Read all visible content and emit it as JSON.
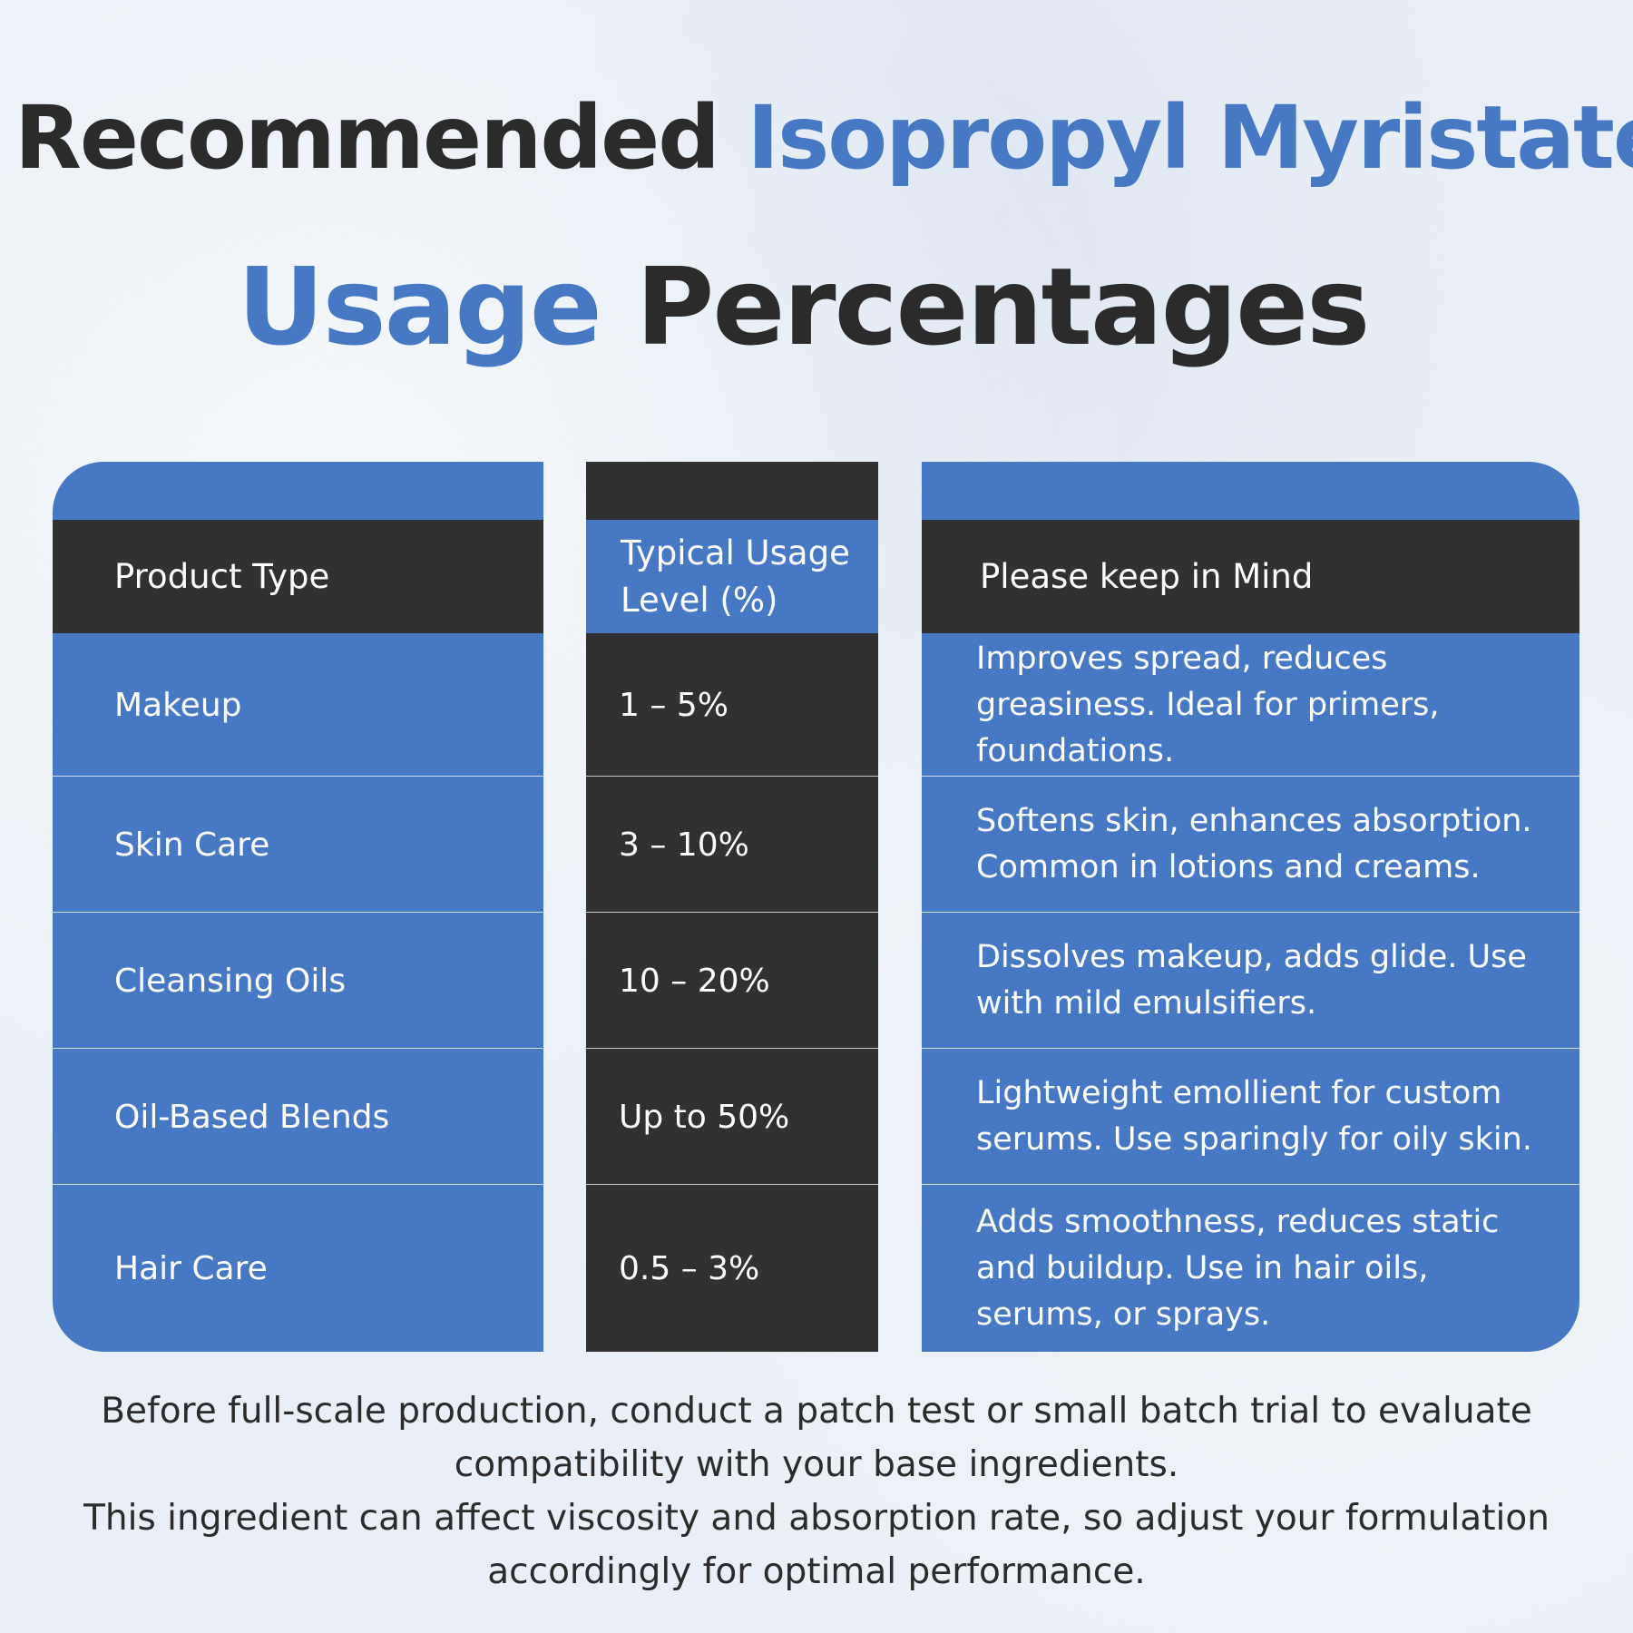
{
  "title": {
    "line1_part1": "Recommended",
    "line1_part2": "Isopropyl Myristate",
    "line2_part1": "Usage",
    "line2_part2": "Percentages"
  },
  "table": {
    "headers": {
      "product_type": "Product Type",
      "usage_level": "Typical Usage Level (%)",
      "notes": "Please keep in Mind"
    },
    "rows": [
      {
        "product": "Makeup",
        "usage": "1 – 5%",
        "note": "Improves spread, reduces greasiness. Ideal for primers, foundations."
      },
      {
        "product": "Skin Care",
        "usage": "3 – 10%",
        "note": "Softens skin, enhances absorption. Common in lotions and creams."
      },
      {
        "product": "Cleansing Oils",
        "usage": "10 – 20%",
        "note": "Dissolves makeup, adds glide. Use with mild emulsifiers."
      },
      {
        "product": "Oil-Based Blends",
        "usage": "Up to 50%",
        "note": "Lightweight emollient for custom serums. Use sparingly for oily skin."
      },
      {
        "product": "Hair Care",
        "usage": "0.5 – 3%",
        "note": "Adds smoothness, reduces static and buildup. Use in hair oils, serums, or sprays."
      }
    ]
  },
  "footer": {
    "paragraph1": "Before full-scale production, conduct a patch test or small batch trial to evaluate compatibility with your base ingredients.",
    "paragraph2": "This ingredient can affect viscosity and absorption rate, so adjust your formulation accordingly for optimal performance."
  },
  "colors": {
    "accent_blue": "#4778c4",
    "dark": "#313131",
    "text_dark": "#2b2b2b",
    "background": "#e9eff6"
  }
}
